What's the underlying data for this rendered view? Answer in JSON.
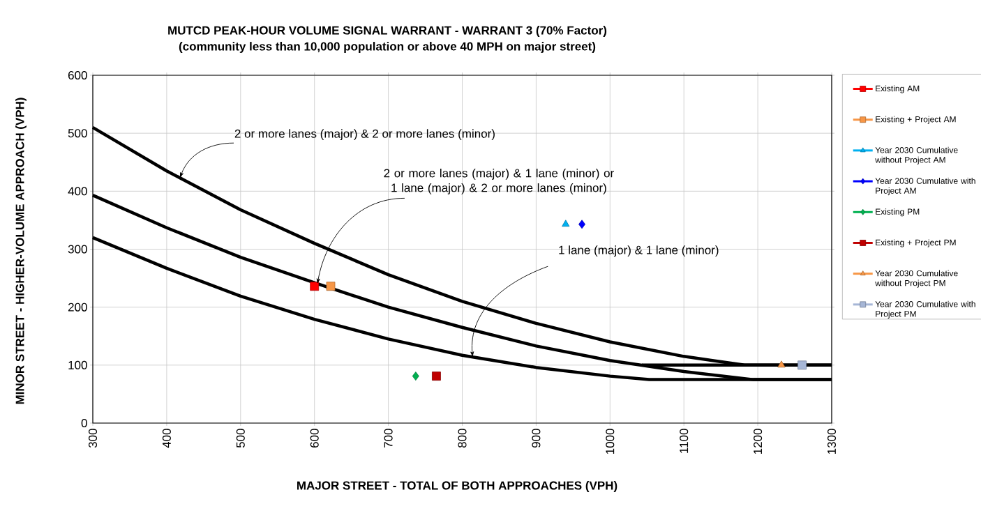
{
  "chart_data": {
    "type": "scatter",
    "title": "MUTCD PEAK-HOUR VOLUME SIGNAL WARRANT - WARRANT 3 (70% Factor)",
    "subtitle": "(community less than 10,000 population or above 40 MPH on major street)",
    "xlabel": "MAJOR STREET - TOTAL OF BOTH APPROACHES (VPH)",
    "ylabel": "MINOR STREET - HIGHER-VOLUME APPROACH (VPH)",
    "xlim": [
      300,
      1300
    ],
    "ylim": [
      0,
      600
    ],
    "xticks": [
      300,
      400,
      500,
      600,
      700,
      800,
      900,
      1000,
      1100,
      1200,
      1300
    ],
    "yticks": [
      0,
      100,
      200,
      300,
      400,
      500,
      600
    ],
    "grid": true,
    "legend": "right",
    "series": [
      {
        "type": "line",
        "color": "#000000",
        "marker": "none",
        "x": [
          300,
          400,
          500,
          600,
          700,
          800,
          900,
          1000,
          1100,
          1182,
          1300
        ],
        "values": [
          510,
          435,
          368,
          310,
          256,
          210,
          172,
          140,
          115,
          100,
          100
        ]
      },
      {
        "type": "line",
        "color": "#000000",
        "marker": "none",
        "x": [
          300,
          400,
          500,
          600,
          700,
          800,
          900,
          1000,
          1100,
          1194,
          1300
        ],
        "values": [
          393,
          337,
          286,
          242,
          200,
          165,
          133,
          108,
          89,
          75,
          75
        ]
      },
      {
        "type": "line",
        "color": "#000000",
        "marker": "none",
        "x": [
          1043,
          1300
        ],
        "values": [
          100,
          100
        ]
      },
      {
        "type": "line",
        "color": "#000000",
        "marker": "none",
        "x": [
          300,
          400,
          500,
          600,
          700,
          800,
          900,
          1000,
          1053,
          1300
        ],
        "values": [
          320,
          267,
          219,
          179,
          145,
          117,
          96,
          81,
          75,
          75
        ]
      },
      {
        "name": "Existing AM",
        "color": "#ff0000",
        "marker": "square",
        "x": [
          600
        ],
        "values": [
          236
        ]
      },
      {
        "name": "Existing + Project AM",
        "color": "#f79646",
        "marker": "square",
        "x": [
          622
        ],
        "values": [
          236
        ]
      },
      {
        "name": "Year 2030 Cumulative without Project AM",
        "color": "#00b0f0",
        "marker": "triangle",
        "x": [
          940
        ],
        "values": [
          343
        ]
      },
      {
        "name": "Year 2030 Cumulative with Project AM",
        "color": "#0000ff",
        "marker": "diamond",
        "x": [
          962
        ],
        "values": [
          343
        ]
      },
      {
        "name": "Existing PM",
        "color": "#00b050",
        "marker": "diamond",
        "x": [
          737
        ],
        "values": [
          81
        ]
      },
      {
        "name": "Existing + Project PM",
        "color": "#c00000",
        "marker": "square",
        "x": [
          765
        ],
        "values": [
          81
        ]
      },
      {
        "name": "Year 2030 Cumulative without Project PM",
        "color": "#f79646",
        "marker": "triangle",
        "x": [
          1232
        ],
        "values": [
          100
        ]
      },
      {
        "name": "Year 2030 Cumulative with Project PM",
        "color": "#a6b6d6",
        "marker": "square",
        "x": [
          1260
        ],
        "values": [
          100
        ]
      }
    ],
    "annotations": [
      {
        "text": "2 or more lanes (major) & 2 or more lanes (minor)",
        "x": 418,
        "y": 423
      },
      {
        "text": "2 or more lanes (major) & 1 lane (minor) or 1 lane (major) & 2 or more lanes (minor)",
        "x": 604,
        "y": 240
      },
      {
        "text": "1 lane (major) & 1 lane (minor)",
        "x": 814,
        "y": 114
      }
    ]
  }
}
